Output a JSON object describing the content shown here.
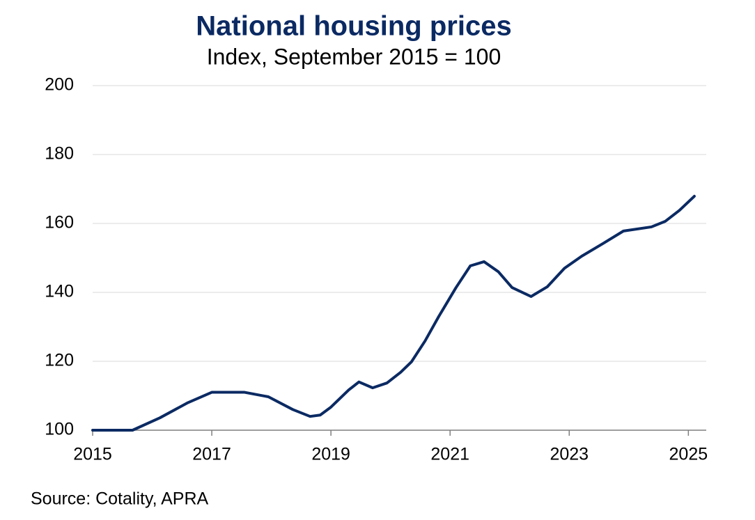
{
  "chart_data": {
    "type": "line",
    "title": "National housing prices",
    "subtitle": "Index, September 2015 = 100",
    "source": "Source: Cotality, APRA",
    "x": [
      2015.0,
      2015.67,
      2016.13,
      2016.6,
      2017.0,
      2017.55,
      2017.95,
      2018.36,
      2018.65,
      2018.82,
      2019.0,
      2019.3,
      2019.47,
      2019.7,
      2019.94,
      2020.17,
      2020.35,
      2020.58,
      2020.81,
      2021.1,
      2021.34,
      2021.57,
      2021.81,
      2022.04,
      2022.36,
      2022.63,
      2022.92,
      2023.21,
      2023.56,
      2023.91,
      2024.38,
      2024.61,
      2024.85,
      2025.1
    ],
    "series": [
      {
        "name": "National housing prices",
        "color": "#0b2a63",
        "values": [
          100,
          100,
          103.6,
          108,
          111,
          111,
          109.7,
          106,
          104,
          104.4,
          106.7,
          111.7,
          114,
          112.3,
          113.7,
          116.8,
          119.8,
          125.9,
          133,
          141.4,
          147.7,
          148.9,
          146,
          141.4,
          138.8,
          141.6,
          147,
          150.5,
          154.1,
          157.8,
          159,
          160.6,
          163.8,
          167.9
        ]
      }
    ],
    "xlim": [
      2015,
      2025.3
    ],
    "xticks": [
      2015,
      2017,
      2019,
      2021,
      2023,
      2025
    ],
    "ylim": [
      100,
      200
    ],
    "yticks": [
      100,
      120,
      140,
      160,
      180,
      200
    ],
    "grid": true
  }
}
